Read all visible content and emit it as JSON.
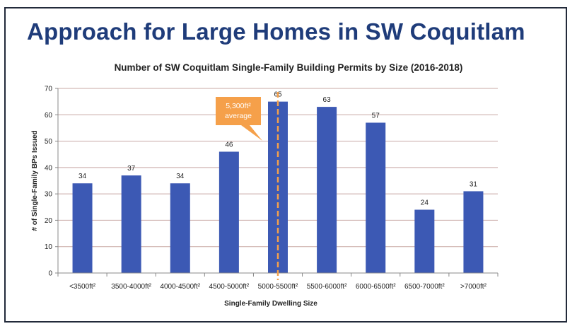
{
  "slide": {
    "title": "Approach for Large Homes in SW Coquitlam"
  },
  "chart_data": {
    "type": "bar",
    "title": "Number of SW Coquitlam Single-Family Building Permits by Size (2016-2018)",
    "xlabel": "Single-Family Dwelling Size",
    "ylabel": "# of Single-Family BPs Issued",
    "categories": [
      "<3500ft²",
      "3500-4000ft²",
      "4000-4500ft²",
      "4500-5000ft²",
      "5000-5500ft²",
      "5500-6000ft²",
      "6000-6500ft²",
      "6500-7000ft²",
      ">7000ft²"
    ],
    "values": [
      34,
      37,
      34,
      46,
      65,
      63,
      57,
      24,
      31
    ],
    "ylim": [
      0,
      70
    ],
    "yticks": [
      0,
      10,
      20,
      30,
      40,
      50,
      60,
      70
    ],
    "grid": true,
    "legend": "none",
    "annotation": {
      "line1": "5,300ft²",
      "line2": "average",
      "x_value": "5000-5500ft²"
    },
    "colors": {
      "bar": "#3c59b4",
      "grid": "#c8a8a4",
      "annotation": "#f5a04a"
    }
  }
}
